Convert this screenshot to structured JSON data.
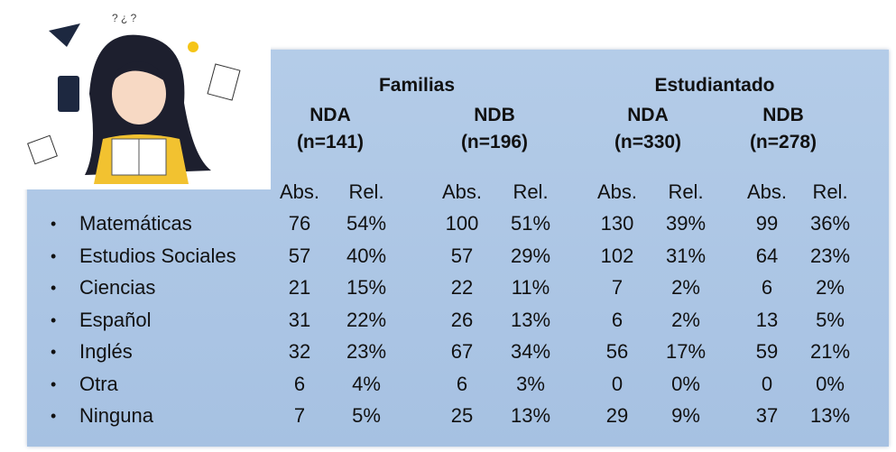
{
  "table": {
    "groups": [
      {
        "title": "Familias",
        "subgroups": [
          {
            "name": "NDA",
            "n": "(n=141)"
          },
          {
            "name": "NDB",
            "n": "(n=196)"
          }
        ]
      },
      {
        "title": "Estudiantado",
        "subgroups": [
          {
            "name": "NDA",
            "n": "(n=330)"
          },
          {
            "name": "NDB",
            "n": "(n=278)"
          }
        ]
      }
    ],
    "column_headers": [
      "Abs.",
      "Rel.",
      "Abs.",
      "Rel.",
      "Abs.",
      "Rel.",
      "Abs.",
      "Rel."
    ],
    "rows": [
      {
        "label": "Matemáticas",
        "cells": [
          "76",
          "54%",
          "100",
          "51%",
          "130",
          "39%",
          "99",
          "36%"
        ]
      },
      {
        "label": "Estudios Sociales",
        "cells": [
          "57",
          "40%",
          "57",
          "29%",
          "102",
          "31%",
          "64",
          "23%"
        ]
      },
      {
        "label": "Ciencias",
        "cells": [
          "21",
          "15%",
          "22",
          "11%",
          "7",
          "2%",
          "6",
          "2%"
        ]
      },
      {
        "label": "Español",
        "cells": [
          "31",
          "22%",
          "26",
          "13%",
          "6",
          "2%",
          "13",
          "5%"
        ]
      },
      {
        "label": "Inglés",
        "cells": [
          "32",
          "23%",
          "67",
          "34%",
          "56",
          "17%",
          "59",
          "21%"
        ]
      },
      {
        "label": "Otra",
        "cells": [
          "6",
          "4%",
          "6",
          "3%",
          "0",
          "0%",
          "0",
          "0%"
        ]
      },
      {
        "label": "Ninguna",
        "cells": [
          "7",
          "5%",
          "25",
          "13%",
          "29",
          "9%",
          "37",
          "13%"
        ]
      }
    ]
  }
}
